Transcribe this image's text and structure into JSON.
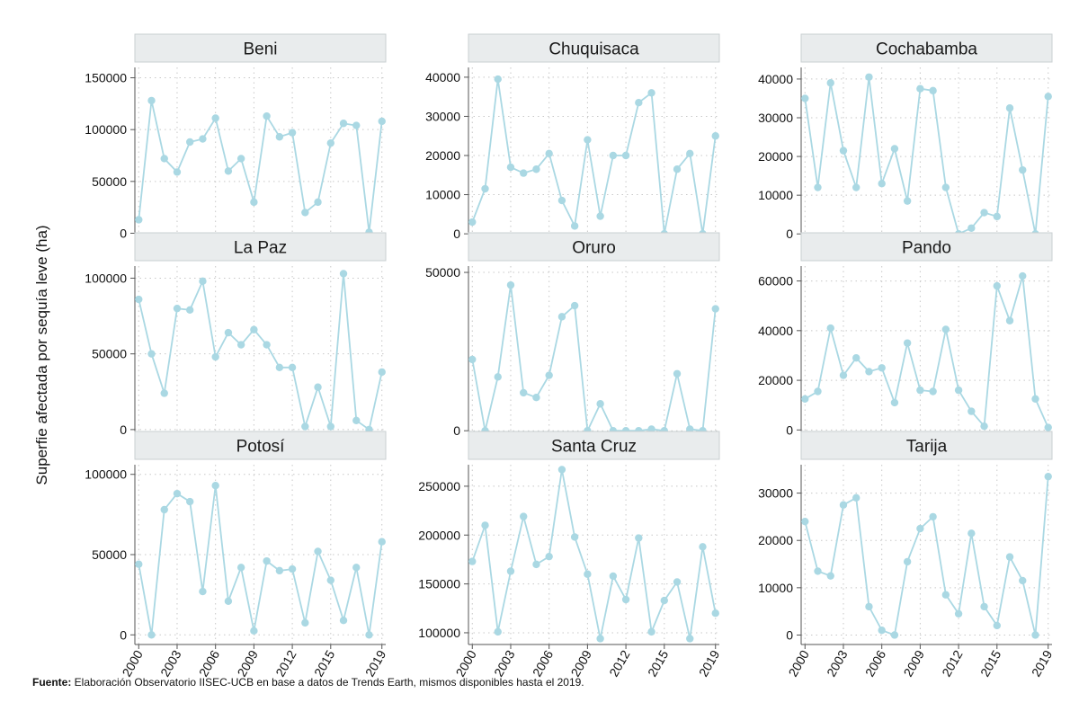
{
  "figure": {
    "ylabel": "Superfie afectada por sequía leve (ha)",
    "footnote_label": "Fuente:",
    "footnote_text": " Elaboración Observatorio IISEC-UCB en base a datos de Trends Earth, mismos disponibles hasta el 2019.",
    "series_color": "#aad8e3",
    "strip_color": "#e9eced"
  },
  "chart_data": [
    {
      "type": "line",
      "title": "Beni",
      "x": [
        2000,
        2001,
        2002,
        2003,
        2004,
        2005,
        2006,
        2007,
        2008,
        2009,
        2010,
        2011,
        2012,
        2013,
        2014,
        2015,
        2016,
        2017,
        2018,
        2019
      ],
      "values": [
        13000,
        128000,
        72000,
        59000,
        88000,
        91000,
        111000,
        60000,
        72000,
        30000,
        113000,
        93000,
        97000,
        20000,
        30000,
        87000,
        106000,
        104000,
        1000,
        108000
      ],
      "ylim": [
        -10000,
        160000
      ],
      "yticks": [
        0,
        50000,
        100000,
        150000
      ],
      "xticks": [
        2000,
        2003,
        2006,
        2009,
        2012,
        2015,
        2019
      ]
    },
    {
      "type": "line",
      "title": "Chuquisaca",
      "x": [
        2000,
        2001,
        2002,
        2003,
        2004,
        2005,
        2006,
        2007,
        2008,
        2009,
        2010,
        2011,
        2012,
        2013,
        2014,
        2015,
        2016,
        2017,
        2018,
        2019
      ],
      "values": [
        3000,
        11500,
        39500,
        17000,
        15500,
        16500,
        20500,
        8500,
        2000,
        24000,
        4500,
        20000,
        20000,
        33500,
        36000,
        0,
        16500,
        20500,
        0,
        25000
      ],
      "ylim": [
        -2500,
        42500
      ],
      "yticks": [
        0,
        10000,
        20000,
        30000,
        40000
      ],
      "xticks": [
        2000,
        2003,
        2006,
        2009,
        2012,
        2015,
        2019
      ]
    },
    {
      "type": "line",
      "title": "Cochabamba",
      "x": [
        2000,
        2001,
        2002,
        2003,
        2004,
        2005,
        2006,
        2007,
        2008,
        2009,
        2010,
        2011,
        2012,
        2013,
        2014,
        2015,
        2016,
        2017,
        2018,
        2019
      ],
      "values": [
        35000,
        12000,
        39000,
        21500,
        12000,
        40500,
        13000,
        22000,
        8500,
        37500,
        37000,
        12000,
        0,
        1500,
        5500,
        4500,
        32500,
        16500,
        0,
        35500
      ],
      "ylim": [
        -2500,
        43000
      ],
      "yticks": [
        0,
        10000,
        20000,
        30000,
        40000
      ],
      "xticks": [
        2000,
        2003,
        2006,
        2009,
        2012,
        2015,
        2019
      ]
    },
    {
      "type": "line",
      "title": "La Paz",
      "x": [
        2000,
        2001,
        2002,
        2003,
        2004,
        2005,
        2006,
        2007,
        2008,
        2009,
        2010,
        2011,
        2012,
        2013,
        2014,
        2015,
        2016,
        2017,
        2018,
        2019
      ],
      "values": [
        86000,
        50000,
        24000,
        80000,
        79000,
        98000,
        48000,
        64000,
        56000,
        66000,
        56000,
        41000,
        41000,
        2000,
        28000,
        2000,
        103000,
        6000,
        0,
        38000
      ],
      "ylim": [
        -6000,
        108000
      ],
      "yticks": [
        0,
        50000,
        100000
      ],
      "xticks": [
        2000,
        2003,
        2006,
        2009,
        2012,
        2015,
        2019
      ]
    },
    {
      "type": "line",
      "title": "Oruro",
      "x": [
        2000,
        2001,
        2002,
        2003,
        2004,
        2005,
        2006,
        2007,
        2008,
        2009,
        2010,
        2011,
        2012,
        2013,
        2014,
        2015,
        2016,
        2017,
        2018,
        2019
      ],
      "values": [
        22500,
        0,
        17000,
        46000,
        12000,
        10500,
        17500,
        36000,
        39500,
        0,
        8500,
        0,
        0,
        0,
        500,
        0,
        18000,
        500,
        0,
        38500
      ],
      "ylim": [
        -2500,
        52000
      ],
      "yticks": [
        0,
        50000
      ],
      "xticks": [
        2000,
        2003,
        2006,
        2009,
        2012,
        2015,
        2019
      ]
    },
    {
      "type": "line",
      "title": "Pando",
      "x": [
        2000,
        2001,
        2002,
        2003,
        2004,
        2005,
        2006,
        2007,
        2008,
        2009,
        2010,
        2011,
        2012,
        2013,
        2014,
        2015,
        2016,
        2017,
        2018,
        2019
      ],
      "values": [
        12500,
        15500,
        41000,
        22000,
        29000,
        23500,
        25000,
        11000,
        35000,
        16000,
        15500,
        40500,
        16000,
        7500,
        1500,
        58000,
        44000,
        62000,
        12500,
        1000
      ],
      "ylim": [
        -3500,
        66000
      ],
      "yticks": [
        0,
        20000,
        40000,
        60000
      ],
      "xticks": [
        2000,
        2003,
        2006,
        2009,
        2012,
        2015,
        2019
      ]
    },
    {
      "type": "line",
      "title": "Potosí",
      "x": [
        2000,
        2001,
        2002,
        2003,
        2004,
        2005,
        2006,
        2007,
        2008,
        2009,
        2010,
        2011,
        2012,
        2013,
        2014,
        2015,
        2016,
        2017,
        2018,
        2019
      ],
      "values": [
        44000,
        0,
        78000,
        88000,
        83000,
        27000,
        93000,
        21000,
        42000,
        2500,
        46000,
        40000,
        41000,
        7500,
        52000,
        34000,
        9000,
        42000,
        0,
        58000
      ],
      "ylim": [
        -6000,
        106000
      ],
      "yticks": [
        0,
        50000,
        100000
      ],
      "xticks": [
        2000,
        2003,
        2006,
        2009,
        2012,
        2015,
        2019
      ]
    },
    {
      "type": "line",
      "title": "Santa Cruz",
      "x": [
        2000,
        2001,
        2002,
        2003,
        2004,
        2005,
        2006,
        2007,
        2008,
        2009,
        2010,
        2011,
        2012,
        2013,
        2014,
        2015,
        2016,
        2017,
        2018,
        2019
      ],
      "values": [
        173000,
        210000,
        101000,
        163000,
        219000,
        170000,
        178000,
        267000,
        198000,
        160000,
        94000,
        158000,
        134000,
        197000,
        101000,
        133000,
        152000,
        94000,
        188000,
        120000
      ],
      "ylim": [
        88000,
        272000
      ],
      "yticks": [
        100000,
        150000,
        200000,
        250000
      ],
      "xticks": [
        2000,
        2003,
        2006,
        2009,
        2012,
        2015,
        2019
      ]
    },
    {
      "type": "line",
      "title": "Tarija",
      "x": [
        2000,
        2001,
        2002,
        2003,
        2004,
        2005,
        2006,
        2007,
        2008,
        2009,
        2010,
        2011,
        2012,
        2013,
        2014,
        2015,
        2016,
        2017,
        2018,
        2019
      ],
      "values": [
        24000,
        13500,
        12500,
        27500,
        29000,
        6000,
        1000,
        0,
        15500,
        22500,
        25000,
        8500,
        4500,
        21500,
        6000,
        2000,
        16500,
        11500,
        0,
        33500
      ],
      "ylim": [
        -2000,
        36000
      ],
      "yticks": [
        0,
        10000,
        20000,
        30000
      ],
      "xticks": [
        2000,
        2003,
        2006,
        2009,
        2012,
        2015,
        2019
      ]
    }
  ]
}
